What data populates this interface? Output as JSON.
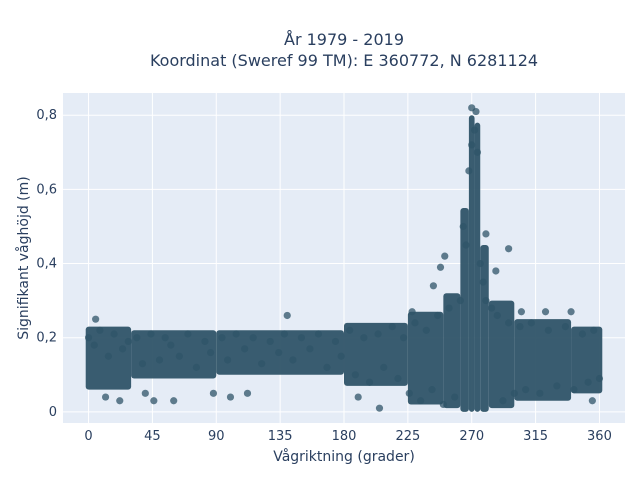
{
  "chart_data": {
    "type": "scatter",
    "title": "År 1979 - 2019",
    "subtitle": "Koordinat (Sweref 99 TM): E 360772, N 6281124",
    "xlabel": "Vågriktning (grader)",
    "ylabel": "Signifikant våghöjd (m)",
    "xlim": [
      -18,
      378
    ],
    "ylim": [
      -0.03,
      0.86
    ],
    "x_ticks": [
      0,
      45,
      90,
      135,
      180,
      225,
      270,
      315,
      360
    ],
    "x_tick_labels": [
      "0",
      "45",
      "90",
      "135",
      "180",
      "225",
      "270",
      "315",
      "360"
    ],
    "y_ticks": [
      0,
      0.2,
      0.4,
      0.6,
      0.8
    ],
    "y_tick_labels": [
      "0",
      "0,2",
      "0,4",
      "0,6",
      "0,8"
    ],
    "grid": true,
    "marker_color": "#2f5468",
    "plot_background": "#e5ecf6",
    "bands": [
      {
        "x": [
          -2,
          30
        ],
        "y": [
          0.06,
          0.23
        ]
      },
      {
        "x": [
          30,
          90
        ],
        "y": [
          0.09,
          0.22
        ]
      },
      {
        "x": [
          90,
          180
        ],
        "y": [
          0.1,
          0.22
        ]
      },
      {
        "x": [
          180,
          225
        ],
        "y": [
          0.07,
          0.24
        ]
      },
      {
        "x": [
          225,
          250
        ],
        "y": [
          0.02,
          0.27
        ]
      },
      {
        "x": [
          250,
          262
        ],
        "y": [
          0.01,
          0.32
        ]
      },
      {
        "x": [
          262,
          268
        ],
        "y": [
          0.0,
          0.55
        ]
      },
      {
        "x": [
          268,
          272
        ],
        "y": [
          0.0,
          0.8
        ]
      },
      {
        "x": [
          272,
          276
        ],
        "y": [
          0.0,
          0.78
        ]
      },
      {
        "x": [
          276,
          282
        ],
        "y": [
          0.0,
          0.45
        ]
      },
      {
        "x": [
          282,
          300
        ],
        "y": [
          0.01,
          0.3
        ]
      },
      {
        "x": [
          300,
          340
        ],
        "y": [
          0.03,
          0.25
        ]
      },
      {
        "x": [
          340,
          362
        ],
        "y": [
          0.05,
          0.23
        ]
      }
    ],
    "points": [
      [
        5,
        0.25
      ],
      [
        12,
        0.04
      ],
      [
        22,
        0.03
      ],
      [
        40,
        0.05
      ],
      [
        46,
        0.03
      ],
      [
        60,
        0.03
      ],
      [
        88,
        0.05
      ],
      [
        100,
        0.04
      ],
      [
        112,
        0.05
      ],
      [
        140,
        0.26
      ],
      [
        190,
        0.04
      ],
      [
        205,
        0.01
      ],
      [
        228,
        0.27
      ],
      [
        243,
        0.34
      ],
      [
        248,
        0.39
      ],
      [
        251,
        0.42
      ],
      [
        264,
        0.5
      ],
      [
        270,
        0.82
      ],
      [
        273,
        0.81
      ],
      [
        280,
        0.48
      ],
      [
        287,
        0.38
      ],
      [
        296,
        0.44
      ],
      [
        305,
        0.27
      ],
      [
        322,
        0.27
      ],
      [
        340,
        0.27
      ],
      [
        355,
        0.03
      ]
    ],
    "band_samples": [
      [
        0,
        0.2
      ],
      [
        4,
        0.18
      ],
      [
        8,
        0.22
      ],
      [
        14,
        0.15
      ],
      [
        18,
        0.21
      ],
      [
        24,
        0.17
      ],
      [
        28,
        0.19
      ],
      [
        34,
        0.2
      ],
      [
        38,
        0.13
      ],
      [
        44,
        0.21
      ],
      [
        50,
        0.14
      ],
      [
        54,
        0.2
      ],
      [
        58,
        0.18
      ],
      [
        64,
        0.15
      ],
      [
        70,
        0.21
      ],
      [
        76,
        0.12
      ],
      [
        82,
        0.19
      ],
      [
        86,
        0.16
      ],
      [
        94,
        0.2
      ],
      [
        98,
        0.14
      ],
      [
        104,
        0.21
      ],
      [
        110,
        0.17
      ],
      [
        116,
        0.2
      ],
      [
        122,
        0.13
      ],
      [
        128,
        0.19
      ],
      [
        134,
        0.16
      ],
      [
        138,
        0.21
      ],
      [
        144,
        0.14
      ],
      [
        150,
        0.2
      ],
      [
        156,
        0.17
      ],
      [
        162,
        0.21
      ],
      [
        168,
        0.12
      ],
      [
        174,
        0.19
      ],
      [
        178,
        0.15
      ],
      [
        184,
        0.22
      ],
      [
        188,
        0.1
      ],
      [
        194,
        0.2
      ],
      [
        198,
        0.08
      ],
      [
        204,
        0.21
      ],
      [
        208,
        0.12
      ],
      [
        214,
        0.23
      ],
      [
        218,
        0.09
      ],
      [
        222,
        0.2
      ],
      [
        226,
        0.05
      ],
      [
        230,
        0.24
      ],
      [
        234,
        0.03
      ],
      [
        238,
        0.22
      ],
      [
        242,
        0.06
      ],
      [
        246,
        0.26
      ],
      [
        250,
        0.02
      ],
      [
        254,
        0.28
      ],
      [
        258,
        0.04
      ],
      [
        262,
        0.3
      ],
      [
        266,
        0.45
      ],
      [
        268,
        0.65
      ],
      [
        270,
        0.72
      ],
      [
        272,
        0.76
      ],
      [
        274,
        0.7
      ],
      [
        276,
        0.4
      ],
      [
        278,
        0.35
      ],
      [
        280,
        0.3
      ],
      [
        284,
        0.28
      ],
      [
        288,
        0.26
      ],
      [
        292,
        0.03
      ],
      [
        296,
        0.24
      ],
      [
        300,
        0.05
      ],
      [
        304,
        0.23
      ],
      [
        308,
        0.06
      ],
      [
        312,
        0.24
      ],
      [
        318,
        0.05
      ],
      [
        324,
        0.22
      ],
      [
        330,
        0.07
      ],
      [
        336,
        0.23
      ],
      [
        342,
        0.06
      ],
      [
        348,
        0.21
      ],
      [
        352,
        0.08
      ],
      [
        356,
        0.22
      ],
      [
        360,
        0.09
      ]
    ]
  }
}
